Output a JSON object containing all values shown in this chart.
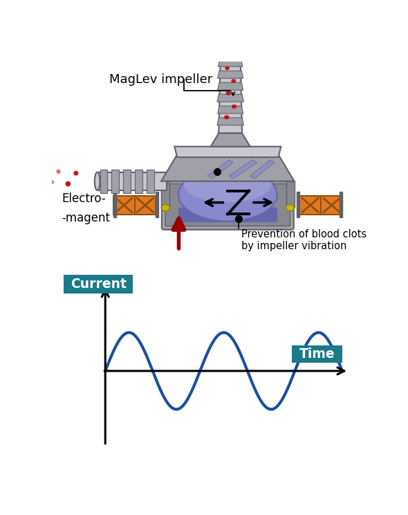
{
  "bg_color": "#ffffff",
  "teal_color": "#1a7a8a",
  "blue_wave_color": "#1a4fa0",
  "red_dot_color": "#cc1111",
  "orange_magnet_color": "#e07820",
  "purple_impeller_color": "#8888cc",
  "purple_impeller_light": "#aaaadd",
  "purple_impeller_dark": "#6666aa",
  "gray_body_color": "#a0a0a8",
  "gray_mid_color": "#888890",
  "gray_dark_color": "#606068",
  "gray_light_color": "#c8c8d0",
  "gray_very_light": "#dcdce4",
  "red_arrow_color": "#990000",
  "label_maglev": "MagLev impeller",
  "label_electro_1": "Electro-",
  "label_electro_2": "-magent",
  "label_prevention": "Prevention of blood clots\nby impeller vibration",
  "label_current": "Current",
  "label_time": "Time"
}
